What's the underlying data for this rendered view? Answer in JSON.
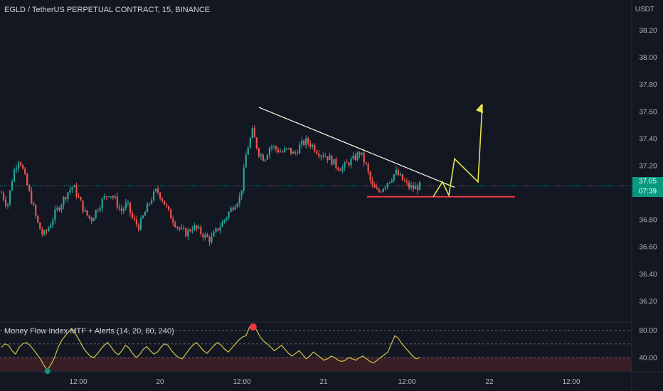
{
  "header": {
    "title": "EGLD / TetherUS PERPETUAL CONTRACT, 15, BINANCE",
    "unit": "USDT"
  },
  "price_label": {
    "value": "37.05",
    "countdown": "07:39"
  },
  "indicator": {
    "title": "Money Flow Index MTF + Alerts (14, 20, 80, 240)"
  },
  "colors": {
    "background": "#131722",
    "bull": "#26a69a",
    "bear": "#ef5350",
    "trendline": "#ffffe0",
    "support": "#f23645",
    "projection": "#e6e34d",
    "mfi_line": "#d6c34a",
    "axis_text": "#b2b5be"
  },
  "chart_data": [
    {
      "type": "candlestick",
      "title": "EGLD / TetherUS PERPETUAL CONTRACT, 15, BINANCE",
      "ylabel": "USDT",
      "ylim": [
        36.05,
        38.36
      ],
      "y_ticks": [
        "38.20",
        "38.00",
        "37.80",
        "37.60",
        "37.40",
        "37.20",
        "37.00",
        "36.80",
        "36.60",
        "36.40",
        "36.20"
      ],
      "x_ticks": [
        "12:00",
        "20",
        "12:00",
        "21",
        "12:00",
        "22",
        "12:00"
      ],
      "last_price": 37.05,
      "series_close": [
        37.0,
        36.9,
        37.15,
        37.26,
        37.1,
        36.95,
        36.78,
        36.68,
        36.75,
        36.85,
        36.92,
        37.0,
        37.05,
        36.95,
        36.85,
        36.8,
        36.88,
        36.95,
        37.0,
        36.95,
        36.86,
        36.92,
        36.8,
        36.75,
        36.85,
        36.95,
        37.02,
        36.95,
        36.85,
        36.78,
        36.72,
        36.7,
        36.75,
        36.72,
        36.68,
        36.65,
        36.72,
        36.78,
        36.85,
        36.92,
        36.97,
        37.3,
        37.45,
        37.3,
        37.25,
        37.35,
        37.32,
        37.3,
        37.32,
        37.28,
        37.35,
        37.38,
        37.35,
        37.3,
        37.28,
        37.25,
        37.2,
        37.18,
        37.22,
        37.25,
        37.3,
        37.2,
        37.05,
        37.0,
        37.05,
        37.1,
        37.15,
        37.1,
        37.05,
        37.03,
        37.05
      ],
      "series_high": [
        37.05,
        36.98,
        37.2,
        37.28,
        37.18,
        37.02,
        36.86,
        36.78,
        36.82,
        36.9,
        36.97,
        37.06,
        37.1,
        37.03,
        36.92,
        36.86,
        36.93,
        37.0,
        37.06,
        37.02,
        36.94,
        36.97,
        36.9,
        36.82,
        36.9,
        37.0,
        37.08,
        37.05,
        36.95,
        36.87,
        36.8,
        36.76,
        36.8,
        36.78,
        36.75,
        36.72,
        36.77,
        36.83,
        36.9,
        36.97,
        37.02,
        37.4,
        37.62,
        37.5,
        37.35,
        37.4,
        37.4,
        37.36,
        37.38,
        37.34,
        37.4,
        37.45,
        37.42,
        37.38,
        37.34,
        37.31,
        37.26,
        37.23,
        37.27,
        37.3,
        37.31,
        37.3,
        37.18,
        37.1,
        37.1,
        37.16,
        37.2,
        37.17,
        37.12,
        37.08,
        37.08
      ],
      "series_low": [
        36.85,
        36.82,
        36.88,
        37.08,
        37.0,
        36.72,
        36.65,
        36.62,
        36.66,
        36.75,
        36.82,
        36.9,
        36.95,
        36.82,
        36.75,
        36.72,
        36.78,
        36.85,
        36.9,
        36.83,
        36.75,
        36.78,
        36.7,
        36.68,
        36.75,
        36.85,
        36.92,
        36.82,
        36.72,
        36.68,
        36.64,
        36.63,
        36.65,
        36.63,
        36.62,
        36.62,
        36.63,
        36.7,
        36.76,
        36.83,
        36.9,
        36.95,
        37.28,
        37.2,
        37.12,
        37.2,
        37.22,
        37.2,
        37.2,
        37.15,
        37.22,
        37.28,
        37.25,
        37.2,
        37.18,
        37.15,
        37.12,
        37.1,
        37.12,
        37.15,
        37.17,
        37.02,
        36.98,
        36.97,
        36.97,
        37.0,
        37.05,
        37.02,
        36.99,
        36.98,
        36.99
      ],
      "drawings": {
        "descending_trendline": [
          [
            37.63
          ],
          [
            37.04
          ]
        ],
        "support_level": 36.97,
        "projection_path": [
          36.97,
          37.08,
          36.98,
          37.25,
          37.08,
          37.65
        ]
      }
    },
    {
      "type": "line",
      "title": "Money Flow Index MTF + Alerts (14, 20, 80, 240)",
      "ylim": [
        20,
        90
      ],
      "y_ticks": [
        "80.00",
        "40.00"
      ],
      "levels": [
        80,
        60,
        40
      ],
      "series_values": [
        55,
        60,
        58,
        50,
        45,
        55,
        60,
        62,
        58,
        52,
        45,
        38,
        28,
        22,
        30,
        40,
        55,
        65,
        72,
        78,
        82,
        74,
        65,
        55,
        48,
        42,
        40,
        45,
        52,
        58,
        62,
        55,
        48,
        44,
        50,
        58,
        54,
        46,
        40,
        44,
        52,
        56,
        50,
        45,
        48,
        55,
        60,
        58,
        50,
        44,
        40,
        38,
        45,
        52,
        58,
        62,
        56,
        50,
        46,
        52,
        58,
        62,
        58,
        52,
        48,
        54,
        60,
        66,
        70,
        72,
        85,
        88,
        80,
        70,
        64,
        60,
        55,
        50,
        54,
        58,
        52,
        46,
        42,
        46,
        50,
        44,
        38,
        42,
        48,
        44,
        40,
        36,
        38,
        42,
        40,
        36,
        34,
        36,
        40,
        38,
        36,
        40,
        42,
        38,
        34,
        32,
        36,
        40,
        44,
        48,
        60,
        72,
        68,
        60,
        54,
        48,
        42,
        38,
        40
      ]
    }
  ]
}
